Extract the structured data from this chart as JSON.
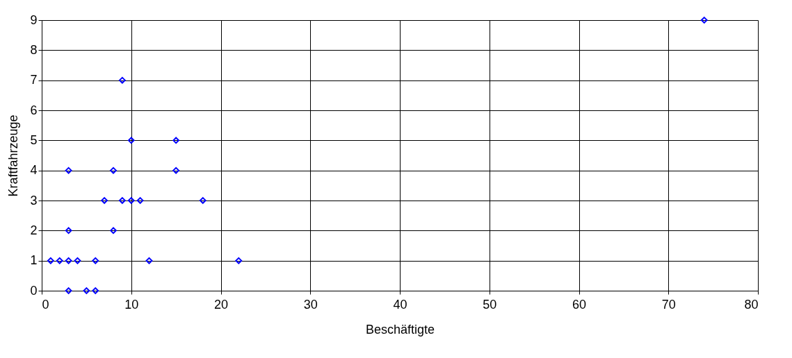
{
  "chart_data": {
    "type": "scatter",
    "xlabel": "Beschäftigte",
    "ylabel": "Kraftfahrzeuge",
    "x": [
      1,
      2,
      3,
      4,
      6,
      12,
      22,
      3,
      5,
      6,
      3,
      8,
      3,
      8,
      7,
      9,
      10,
      11,
      18,
      15,
      15,
      10,
      9,
      74
    ],
    "series": [
      {
        "color": "#0000ff",
        "values": [
          1,
          1,
          1,
          1,
          1,
          1,
          1,
          0,
          0,
          0,
          2,
          2,
          4,
          4,
          3,
          3,
          3,
          3,
          3,
          4,
          5,
          5,
          7,
          9
        ]
      }
    ],
    "xlim": [
      0,
      80
    ],
    "xticks": [
      0,
      10,
      20,
      30,
      40,
      50,
      60,
      70,
      80
    ],
    "ylim": [
      0,
      9
    ],
    "yticks": [
      0,
      1,
      2,
      3,
      4,
      5,
      6,
      7,
      8,
      9
    ],
    "grid": true,
    "marker": "diamond",
    "legend": false
  }
}
